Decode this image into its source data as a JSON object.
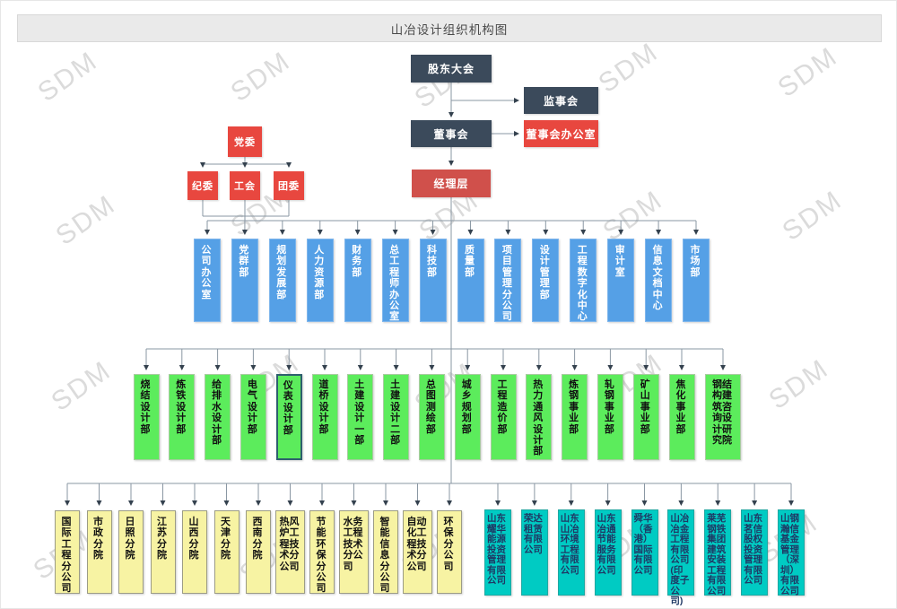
{
  "title": "山冶设计组织机构图",
  "watermark": "SDM",
  "governance": {
    "shareholders": "股东大会",
    "supervisors": "监事会",
    "board": "董事会",
    "board_office": "董事会办公室",
    "management": "经理层"
  },
  "party": {
    "committee": "党委",
    "children": [
      "纪委",
      "工会",
      "团委"
    ]
  },
  "functional_departments": [
    "公司办公室",
    "党群部",
    "规划发展部",
    "人力资源部",
    "财务部",
    "总工程师办公室",
    "科技部",
    "质量部",
    "项目管理分公司",
    "设计管理部",
    "工程数字化中心",
    "审计室",
    "信息文档中心",
    "市场部"
  ],
  "design_departments": [
    "烧结设计部",
    "炼铁设计部",
    "给排水设计部",
    "电气设计部",
    "仪表设计部",
    "道桥设计部",
    "土建设计一部",
    "土建设计二部",
    "总图测绘部",
    "城乡规划部",
    "工程造价部",
    "热力通风设计部",
    "炼钢事业部",
    "轧钢事业部",
    "矿山事业部",
    "焦化事业部",
    "钢结构建筑咨询设计研究院"
  ],
  "selected_department": "仪表设计部",
  "branches": [
    "国际工程分公司",
    "市政分院",
    "日照分院",
    "江苏分院",
    "山西分院",
    "天津分院",
    "西南分院",
    "热风炉工程技术分公司",
    "节能环保分公司",
    "水务工程技术分公司",
    "智能信息分公司",
    "自动化工程技术分公司",
    "环保分公司"
  ],
  "subsidiaries": [
    "山东耀华能源投资管理有限公司",
    "荣达租赁有限公司",
    "山东山冶环境工程有限公司",
    "山东冶通节能服务有限公司",
    "舜华（香港）国际有限公司",
    "山冶冶金工程有限公司(印度子公司)",
    "莱芜钢铁集团建筑安装工程有限公司",
    "山东茗信股权投资管理有限公司",
    "山钢瀚信基金管理（深圳）有限公司"
  ],
  "palette": {
    "dark": "#3B4A5B",
    "red": "#E8473F",
    "red_dark": "#D0504B",
    "blue": "#55A0E6",
    "green": "#5CEC5C",
    "yellow": "#F7F3A3",
    "teal": "#00CBC3",
    "teal_text": "#1F3864",
    "line": "#8A97A3",
    "arrow": "#34414E",
    "selected_border": "#2E5F6E"
  }
}
